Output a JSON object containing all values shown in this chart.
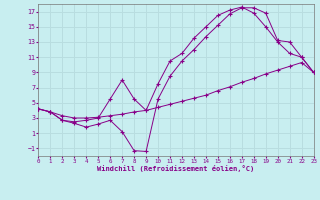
{
  "bg_color": "#c8eef0",
  "grid_color": "#b8dde0",
  "line_color": "#880088",
  "xlabel": "Windchill (Refroidissement éolien,°C)",
  "xlim": [
    0,
    23
  ],
  "ylim": [
    -2,
    18
  ],
  "xticks": [
    0,
    1,
    2,
    3,
    4,
    5,
    6,
    7,
    8,
    9,
    10,
    11,
    12,
    13,
    14,
    15,
    16,
    17,
    18,
    19,
    20,
    21,
    22,
    23
  ],
  "yticks": [
    -1,
    1,
    3,
    5,
    7,
    9,
    11,
    13,
    15,
    17
  ],
  "line1_x": [
    0,
    1,
    2,
    3,
    4,
    5,
    6,
    7,
    8,
    9,
    10,
    11,
    12,
    13,
    14,
    15,
    16,
    17,
    18,
    19,
    20,
    21,
    22,
    23
  ],
  "line1_y": [
    4.2,
    3.8,
    3.3,
    3.0,
    3.0,
    3.1,
    3.3,
    3.5,
    3.8,
    4.0,
    4.4,
    4.8,
    5.2,
    5.6,
    6.0,
    6.6,
    7.1,
    7.7,
    8.2,
    8.8,
    9.3,
    9.8,
    10.3,
    9.0
  ],
  "line2_x": [
    0,
    1,
    2,
    3,
    4,
    5,
    6,
    7,
    8,
    9,
    10,
    11,
    12,
    13,
    14,
    15,
    16,
    17,
    18,
    19,
    20,
    21,
    22,
    23
  ],
  "line2_y": [
    4.2,
    3.8,
    2.7,
    2.5,
    2.7,
    3.0,
    5.5,
    8.0,
    5.5,
    4.0,
    7.5,
    10.5,
    11.5,
    13.5,
    15.0,
    16.5,
    17.2,
    17.6,
    16.8,
    15.0,
    13.0,
    11.5,
    11.0,
    9.0
  ],
  "line3_x": [
    0,
    1,
    2,
    3,
    4,
    5,
    6,
    7,
    8,
    9,
    10,
    11,
    12,
    13,
    14,
    15,
    16,
    17,
    18,
    19,
    20,
    21,
    22,
    23
  ],
  "line3_y": [
    4.2,
    3.8,
    2.7,
    2.3,
    1.8,
    2.2,
    2.7,
    1.2,
    -1.3,
    -1.4,
    5.5,
    8.5,
    10.5,
    12.0,
    13.7,
    15.2,
    16.7,
    17.5,
    17.5,
    16.8,
    13.2,
    13.0,
    11.0,
    9.0
  ]
}
